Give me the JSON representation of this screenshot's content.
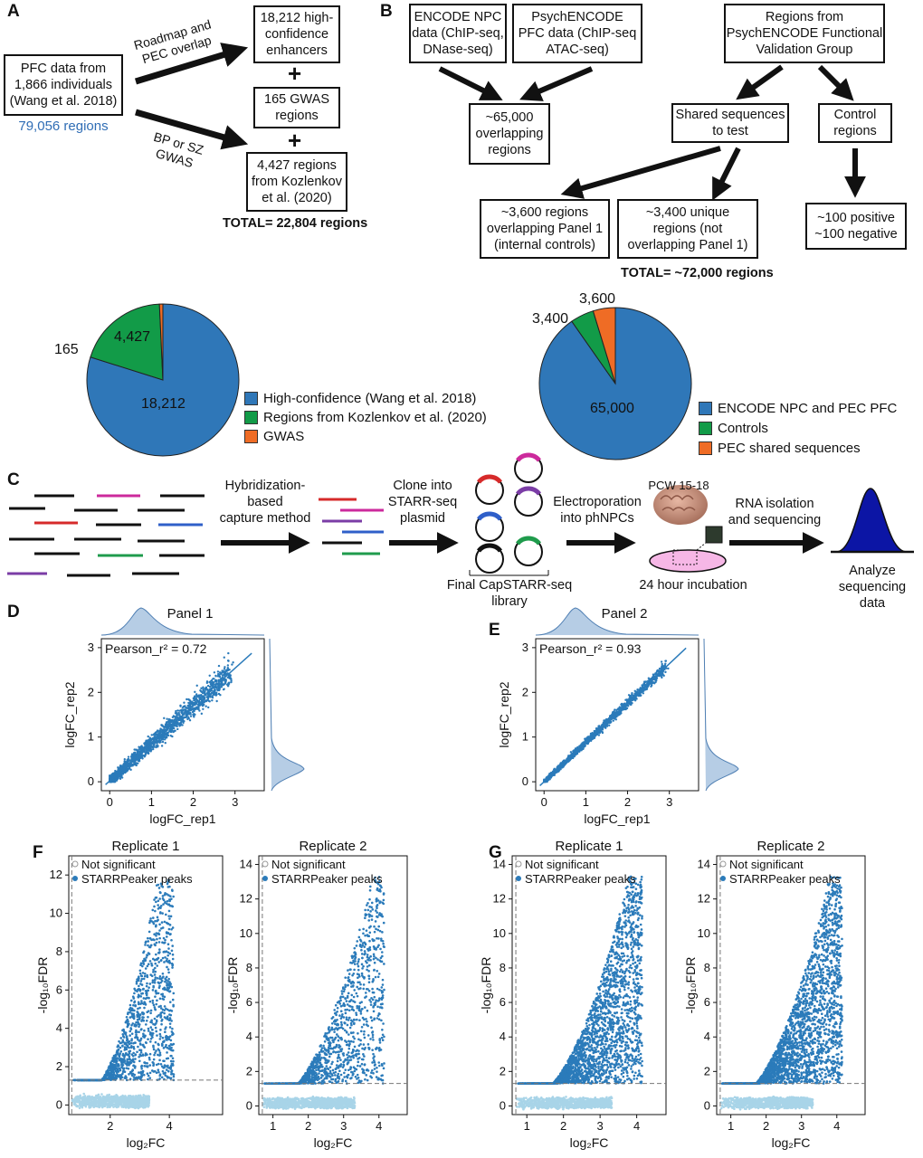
{
  "panel_labels": {
    "a": "A",
    "b": "B",
    "c": "C",
    "d": "D",
    "e": "E",
    "f": "F",
    "g": "G"
  },
  "panelA": {
    "source_box": "PFC data from\n1,866 individuals\n(Wang et al. 2018)",
    "source_regions": "79,056 regions",
    "arrow1_label": "Roadmap and\nPEC overlap",
    "arrow2_label": "BP or SZ\nGWAS",
    "box1": "18,212 high-\nconfidence\nenhancers",
    "box2": "165 GWAS\nregions",
    "box3": "4,427 regions\nfrom Kozlenkov\net al. (2020)",
    "plus": "+",
    "total": "TOTAL= 22,804 regions"
  },
  "panelB": {
    "box_encode": "ENCODE NPC\ndata (ChIP-seq,\nDNase-seq)",
    "box_psych": "PsychENCODE\nPFC data (ChIP-seq\nATAC-seq)",
    "box_regions": "Regions from\nPsychENCODE Functional\nValidation Group",
    "box_overlap": "~65,000\noverlapping\nregions",
    "box_shared": "Shared sequences\nto test",
    "box_control": "Control\nregions",
    "box_3600": "~3,600 regions\noverlapping Panel 1\n(internal controls)",
    "box_3400": "~3,400 unique\nregions (not\noverlapping Panel 1)",
    "box_posneg": "~100 positive\n~100 negative",
    "total": "TOTAL= ~72,000 regions"
  },
  "pies": {
    "left": {
      "slice_labels": {
        "big": "18,212",
        "green": "4,427",
        "orange": "165"
      },
      "legend": [
        "High-confidence (Wang et al. 2018)",
        "Regions from Kozlenkov et al. (2020)",
        "GWAS"
      ]
    },
    "right": {
      "slice_labels": {
        "big": "65,000",
        "green": "3,600",
        "orange": "3,400"
      },
      "legend": [
        "ENCODE NPC and PEC PFC",
        "Controls",
        "PEC shared sequences"
      ]
    },
    "colors": {
      "blue": "#2f77b8",
      "green": "#129b48",
      "orange": "#ef6c25"
    }
  },
  "panelC": {
    "step1": "Hybridization-\nbased\ncapture method",
    "step2": "Clone into\nSTARR-seq\nplasmid",
    "step3": "Electroporation\ninto phNPCs",
    "pcw": "PCW 15-18",
    "step4": "RNA isolation\nand sequencing",
    "library": "Final CapSTARR-seq\nlibrary",
    "incubation": "24 hour incubation",
    "analyze": "Analyze\nsequencing data"
  },
  "scatterD": {
    "title": "Panel 1",
    "pearson": "Pearson_r² = 0.72",
    "xlabel": "logFC_rep1",
    "ylabel": "logFC_rep2",
    "xticks": [
      "0",
      "1",
      "2",
      "3"
    ],
    "yticks": [
      "0",
      "1",
      "2",
      "3"
    ]
  },
  "scatterE": {
    "title": "Panel 2",
    "pearson": "Pearson_r² = 0.93",
    "xlabel": "logFC_rep1",
    "ylabel": "logFC_rep2",
    "xticks": [
      "0",
      "1",
      "2",
      "3"
    ],
    "yticks": [
      "0",
      "1",
      "2",
      "3"
    ]
  },
  "volcano": {
    "legend_ns": "Not significant",
    "legend_sig": "STARRPeaker peaks",
    "xlabel": "log₂FC",
    "ylabel": "-log₁₀FDR",
    "F1": {
      "title": "Replicate 1",
      "xticks": [
        "2",
        "4"
      ],
      "yticks": [
        "0",
        "2",
        "4",
        "6",
        "8",
        "10",
        "12"
      ]
    },
    "F2": {
      "title": "Replicate 2",
      "xticks": [
        "1",
        "2",
        "3",
        "4"
      ],
      "yticks": [
        "0",
        "2",
        "4",
        "6",
        "8",
        "10",
        "12",
        "14"
      ]
    },
    "G1": {
      "title": "Replicate 1",
      "xticks": [
        "1",
        "2",
        "3",
        "4"
      ],
      "yticks": [
        "0",
        "2",
        "4",
        "6",
        "8",
        "10",
        "12",
        "14"
      ]
    },
    "G2": {
      "title": "Replicate 2",
      "xticks": [
        "1",
        "2",
        "3",
        "4"
      ],
      "yticks": [
        "0",
        "2",
        "4",
        "6",
        "8",
        "10",
        "12",
        "14"
      ]
    }
  },
  "chart_data": [
    {
      "type": "pie",
      "categories": [
        "High-confidence (Wang et al. 2018)",
        "Regions from Kozlenkov et al. (2020)",
        "GWAS"
      ],
      "values": [
        18212,
        4427,
        165
      ]
    },
    {
      "type": "pie",
      "categories": [
        "ENCODE NPC and PEC PFC",
        "Controls",
        "PEC shared sequences"
      ],
      "values": [
        65000,
        3600,
        3400
      ]
    },
    {
      "type": "scatter",
      "title": "Panel 1",
      "xlabel": "logFC_rep1",
      "ylabel": "logFC_rep2",
      "xlim": [
        -0.2,
        3.7
      ],
      "ylim": [
        -0.2,
        3.2
      ],
      "annotation": "Pearson_r² = 0.72",
      "fit_line": {
        "slope": 0.84,
        "intercept": 0.02
      }
    },
    {
      "type": "scatter",
      "title": "Panel 2",
      "xlabel": "logFC_rep1",
      "ylabel": "logFC_rep2",
      "xlim": [
        -0.2,
        3.7
      ],
      "ylim": [
        -0.2,
        3.2
      ],
      "annotation": "Pearson_r² = 0.93",
      "fit_line": {
        "slope": 0.88,
        "intercept": 0.0
      }
    },
    {
      "type": "scatter",
      "title": "Replicate 1 (F)",
      "xlabel": "log₂FC",
      "ylabel": "-log₁₀FDR",
      "xlim": [
        0.6,
        5.8
      ],
      "ylim": [
        -0.5,
        13
      ],
      "threshold_y": 1.3,
      "threshold_x": 0.7,
      "series": [
        {
          "name": "Not significant"
        },
        {
          "name": "STARRPeaker peaks"
        }
      ]
    },
    {
      "type": "scatter",
      "title": "Replicate 2 (F)",
      "xlabel": "log₂FC",
      "ylabel": "-log₁₀FDR",
      "xlim": [
        0.6,
        4.8
      ],
      "ylim": [
        -0.5,
        14.5
      ],
      "threshold_y": 1.3,
      "threshold_x": 0.7,
      "series": [
        {
          "name": "Not significant"
        },
        {
          "name": "STARRPeaker peaks"
        }
      ]
    },
    {
      "type": "scatter",
      "title": "Replicate 1 (G)",
      "xlabel": "log₂FC",
      "ylabel": "-log₁₀FDR",
      "xlim": [
        0.6,
        4.8
      ],
      "ylim": [
        -0.5,
        14.5
      ],
      "threshold_y": 1.3,
      "threshold_x": 0.7,
      "series": [
        {
          "name": "Not significant"
        },
        {
          "name": "STARRPeaker peaks"
        }
      ]
    },
    {
      "type": "scatter",
      "title": "Replicate 2 (G)",
      "xlabel": "log₂FC",
      "ylabel": "-log₁₀FDR",
      "xlim": [
        0.6,
        4.8
      ],
      "ylim": [
        -0.5,
        14.5
      ],
      "threshold_y": 1.3,
      "threshold_x": 0.7,
      "series": [
        {
          "name": "Not significant"
        },
        {
          "name": "STARRPeaker peaks"
        }
      ]
    }
  ]
}
